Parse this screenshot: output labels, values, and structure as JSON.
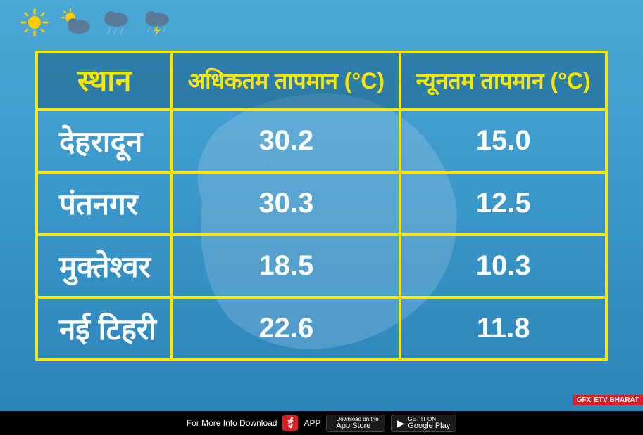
{
  "styling": {
    "border_color": "#ffe600",
    "header_bg": "rgba(0,60,90,0.35)",
    "header_text_color": "#ffe600",
    "cell_text_color": "#ffffff",
    "font_size_header": 32,
    "font_size_place_header": 42,
    "font_size_cell": 40,
    "font_size_place": 42
  },
  "table": {
    "columns": [
      {
        "label": "स्थान",
        "key": "place"
      },
      {
        "label": "अधिकतम तापमान (°C)",
        "key": "max"
      },
      {
        "label": "न्यूनतम तापमान (°C)",
        "key": "min"
      }
    ],
    "rows": [
      {
        "place": "देहरादून",
        "max": "30.2",
        "min": "15.0"
      },
      {
        "place": "पंतनगर",
        "max": "30.3",
        "min": "12.5"
      },
      {
        "place": "मुक्तेश्वर",
        "max": "18.5",
        "min": "10.3"
      },
      {
        "place": "नई टिहरी",
        "max": "22.6",
        "min": "11.8"
      }
    ]
  },
  "icons": [
    "sun",
    "partly-cloudy",
    "rain",
    "thunder"
  ],
  "gfx": {
    "label": "GFX",
    "brand": "ETV BHARAT"
  },
  "footer": {
    "text": "For More Info Download",
    "app_text": "APP",
    "appstore_small": "Download on the",
    "appstore_big": "App Store",
    "play_small": "GET IT ON",
    "play_big": "Google Play"
  }
}
